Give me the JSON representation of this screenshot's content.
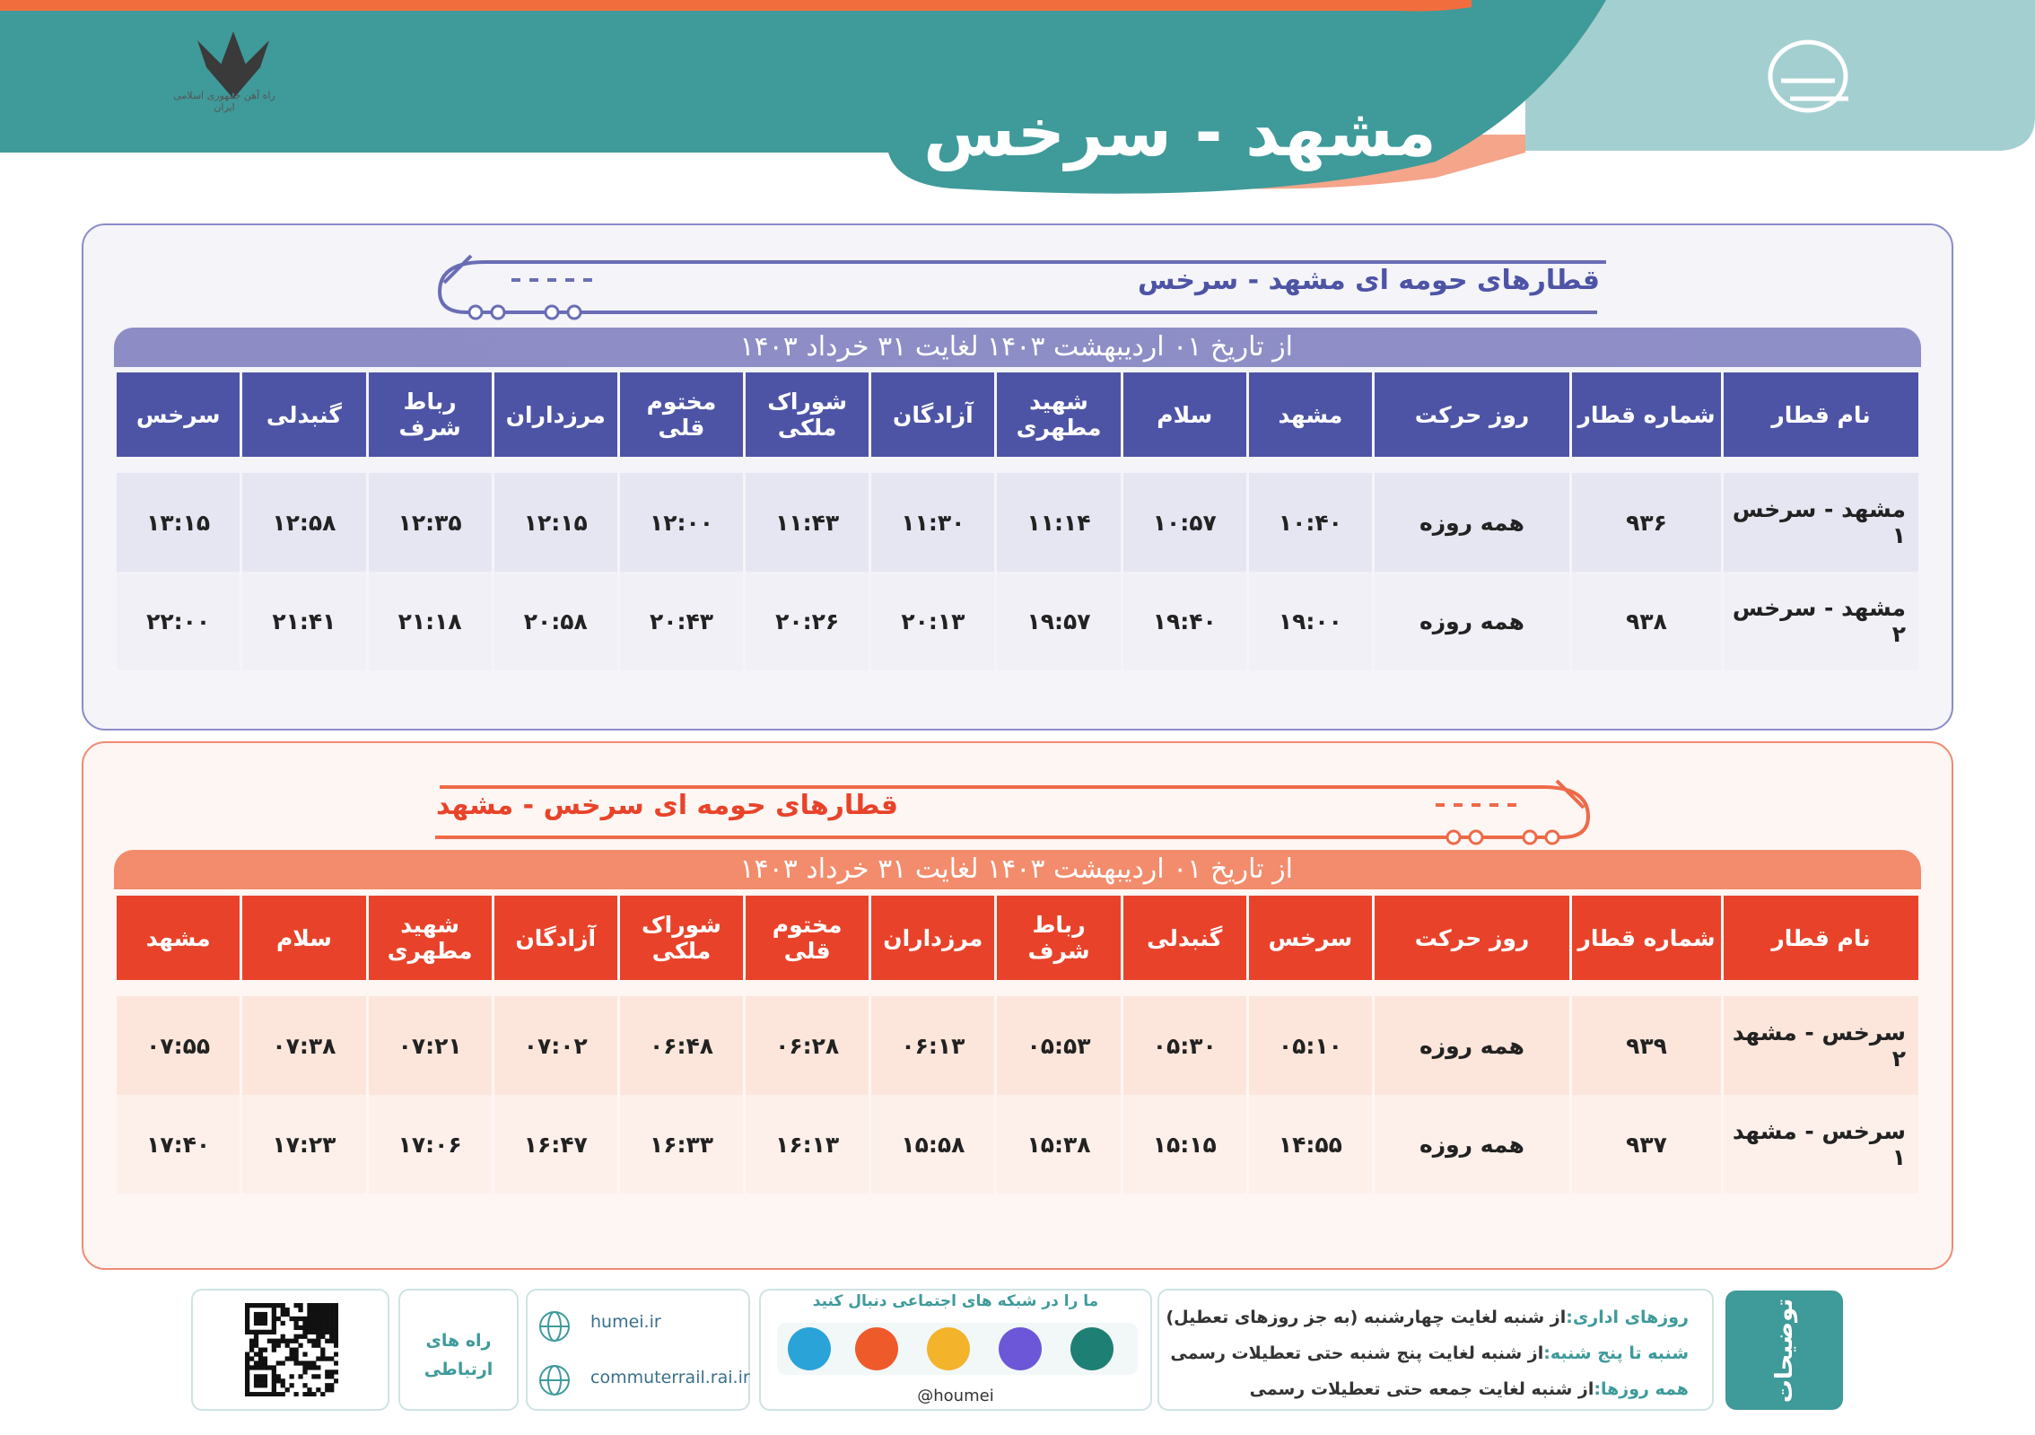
{
  "header": {
    "title": "مشهد - سرخس",
    "emblem_caption": "راه آهن جمهوری اسلامی ایران"
  },
  "sections": [
    {
      "title": "قطارهای حومه ای مشهد - سرخس",
      "date_range": "از تاریخ ۰۱ اردیبهشت ۱۴۰۳ لغایت ۳۱ خرداد ۱۴۰۳",
      "columns": [
        "نام قطار",
        "شماره قطار",
        "روز حرکت",
        "مشهد",
        "سلام",
        "شهید مطهری",
        "آزادگان",
        "شوراک ملکی",
        "مختوم قلی",
        "مرزداران",
        "رباط شرف",
        "گنبدلی",
        "سرخس"
      ],
      "rows": [
        [
          "مشهد - سرخس ۱",
          "۹۳۶",
          "همه روزه",
          "۱۰:۴۰",
          "۱۰:۵۷",
          "۱۱:۱۴",
          "۱۱:۳۰",
          "۱۱:۴۳",
          "۱۲:۰۰",
          "۱۲:۱۵",
          "۱۲:۳۵",
          "۱۲:۵۸",
          "۱۳:۱۵"
        ],
        [
          "مشهد - سرخس ۲",
          "۹۳۸",
          "همه روزه",
          "۱۹:۰۰",
          "۱۹:۴۰",
          "۱۹:۵۷",
          "۲۰:۱۳",
          "۲۰:۲۶",
          "۲۰:۴۳",
          "۲۰:۵۸",
          "۲۱:۱۸",
          "۲۱:۴۱",
          "۲۲:۰۰"
        ]
      ]
    },
    {
      "title": "قطارهای حومه ای سرخس - مشهد",
      "date_range": "از تاریخ ۰۱ اردیبهشت ۱۴۰۳ لغایت ۳۱ خرداد ۱۴۰۳",
      "columns": [
        "نام قطار",
        "شماره قطار",
        "روز حرکت",
        "سرخس",
        "گنبدلی",
        "رباط شرف",
        "مرزداران",
        "مختوم قلی",
        "شوراک ملکی",
        "آزادگان",
        "شهید مطهری",
        "سلام",
        "مشهد"
      ],
      "rows": [
        [
          "سرخس - مشهد ۲",
          "۹۳۹",
          "همه روزه",
          "۰۵:۱۰",
          "۰۵:۳۰",
          "۰۵:۵۳",
          "۰۶:۱۳",
          "۰۶:۲۸",
          "۰۶:۴۸",
          "۰۷:۰۲",
          "۰۷:۲۱",
          "۰۷:۳۸",
          "۰۷:۵۵"
        ],
        [
          "سرخس - مشهد ۱",
          "۹۳۷",
          "همه روزه",
          "۱۴:۵۵",
          "۱۵:۱۵",
          "۱۵:۳۸",
          "۱۵:۵۸",
          "۱۶:۱۳",
          "۱۶:۳۳",
          "۱۶:۴۷",
          "۱۷:۰۶",
          "۱۷:۲۳",
          "۱۷:۴۰"
        ]
      ]
    }
  ],
  "footer": {
    "notes_label": "توضیحات",
    "notes": [
      {
        "term": "روزهای اداری:",
        "text": "از شنبه لغایت چهارشنبه (به جز روزهای تعطیل)"
      },
      {
        "term": "شنبه تا پنج شنبه:",
        "text": "از شنبه لغایت پنج شنبه حتی تعطیلات رسمی"
      },
      {
        "term": "همه روزها:",
        "text": "از شنبه لغایت جمعه حتی تعطیلات رسمی"
      }
    ],
    "social_heading": "ما را در شبکه های اجتماعی دنبال کنید",
    "social_handle": "@houmei",
    "websites": [
      "humei.ir",
      "commuterrail.rai.ir"
    ],
    "contact_label": "راه های ارتباطی"
  }
}
